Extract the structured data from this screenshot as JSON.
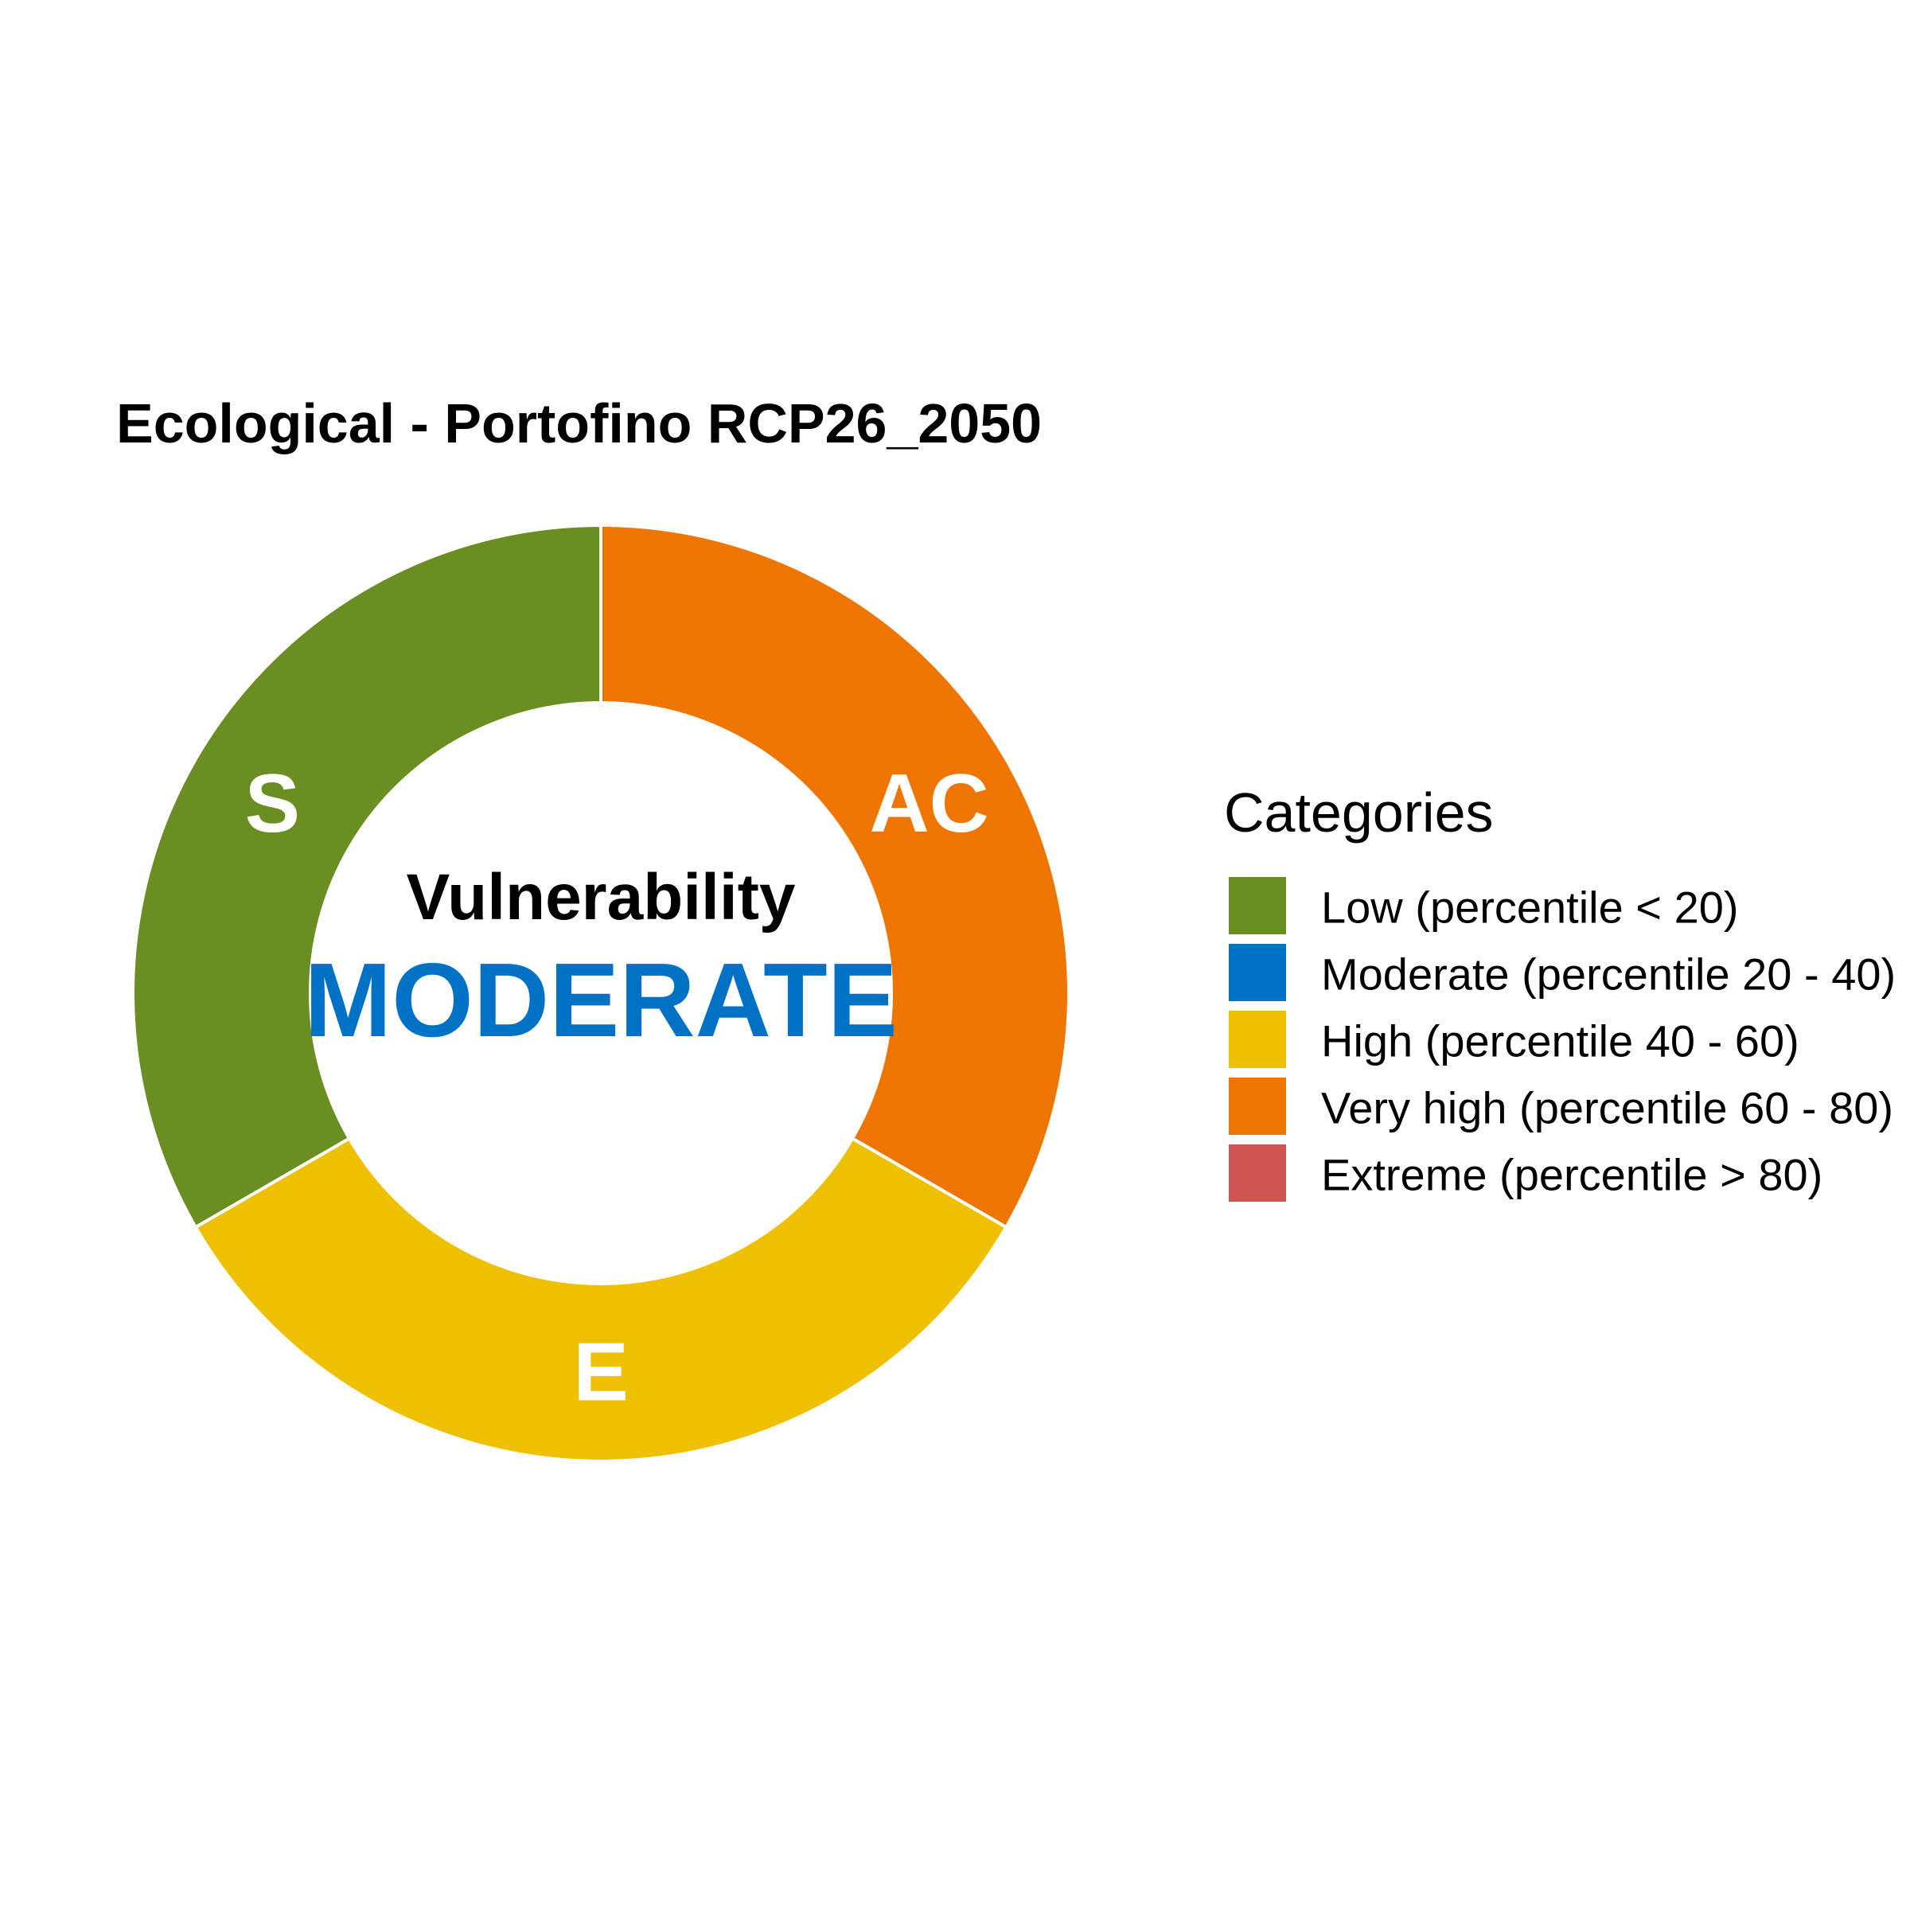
{
  "chart_data": {
    "type": "pie",
    "title": "Ecological - Portofino RCP26_2050",
    "donut": true,
    "slices": [
      {
        "label": "AC",
        "value": 1,
        "category": "Very high (percentile 60 - 80)",
        "color": "#EE7600"
      },
      {
        "label": "E",
        "value": 1,
        "category": "High (percentile 40 - 60)",
        "color": "#EEC000"
      },
      {
        "label": "S",
        "value": 1,
        "category": "Low (percentile < 20)",
        "color": "#6B8E23"
      }
    ],
    "center": {
      "heading": "Vulnerability",
      "value": "MODERATE",
      "value_color": "#0072C6"
    },
    "legend": {
      "title": "Categories",
      "position": "right",
      "items": [
        {
          "label": "Low (percentile < 20)",
          "color": "#6B8E23"
        },
        {
          "label": "Moderate (percentile 20 - 40)",
          "color": "#0072C6"
        },
        {
          "label": "High (percentile 40 - 60)",
          "color": "#EEC000"
        },
        {
          "label": "Very high (percentile 60 - 80)",
          "color": "#EE7600"
        },
        {
          "label": "Extreme (percentile > 80)",
          "color": "#CD5450"
        }
      ]
    }
  }
}
